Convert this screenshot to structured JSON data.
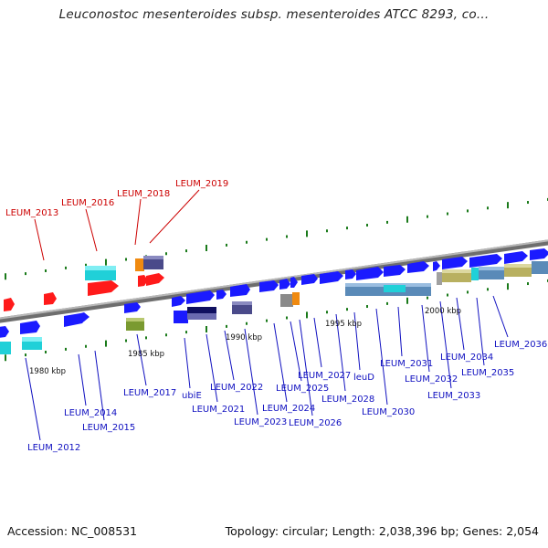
{
  "title": "Leuconostoc mesenteroides subsp. mesenteroides ATCC 8293, co...",
  "footer": {
    "accession": "Accession: NC_008531",
    "topology": "Topology: circular; Length: 2,038,396 bp; Genes: 2,054"
  },
  "colors": {
    "gene_forward": "#1a1aff",
    "gene_highlight_red": "#ff1a1a",
    "label_blue": "#1010c0",
    "label_red": "#cc0000",
    "backbone": "#888888",
    "tick": "#1a7a1a",
    "cyan": "#20d0d8",
    "olive": "#b8b060",
    "steel": "#5a8ab8",
    "orange": "#f08a10",
    "slate": "#4a4a8a",
    "gray": "#8a8a8a"
  },
  "scale_labels": [
    "1980 kbp",
    "1985 kbp",
    "1990 kbp",
    "1995 kbp",
    "2000 kbp"
  ],
  "gene_labels_red": [
    "LEUM_2013",
    "LEUM_2016",
    "LEUM_2018",
    "LEUM_2019"
  ],
  "gene_labels_blue": [
    "LEUM_2012",
    "LEUM_2014",
    "LEUM_2015",
    "LEUM_2017",
    "ubiE",
    "LEUM_2021",
    "LEUM_2022",
    "LEUM_2023",
    "LEUM_2024",
    "LEUM_2025",
    "LEUM_2026",
    "LEUM_2027",
    "LEUM_2028",
    "leuD",
    "LEUM_2030",
    "LEUM_2031",
    "LEUM_2032",
    "LEUM_2033",
    "LEUM_2034",
    "LEUM_2035",
    "LEUM_2036"
  ]
}
